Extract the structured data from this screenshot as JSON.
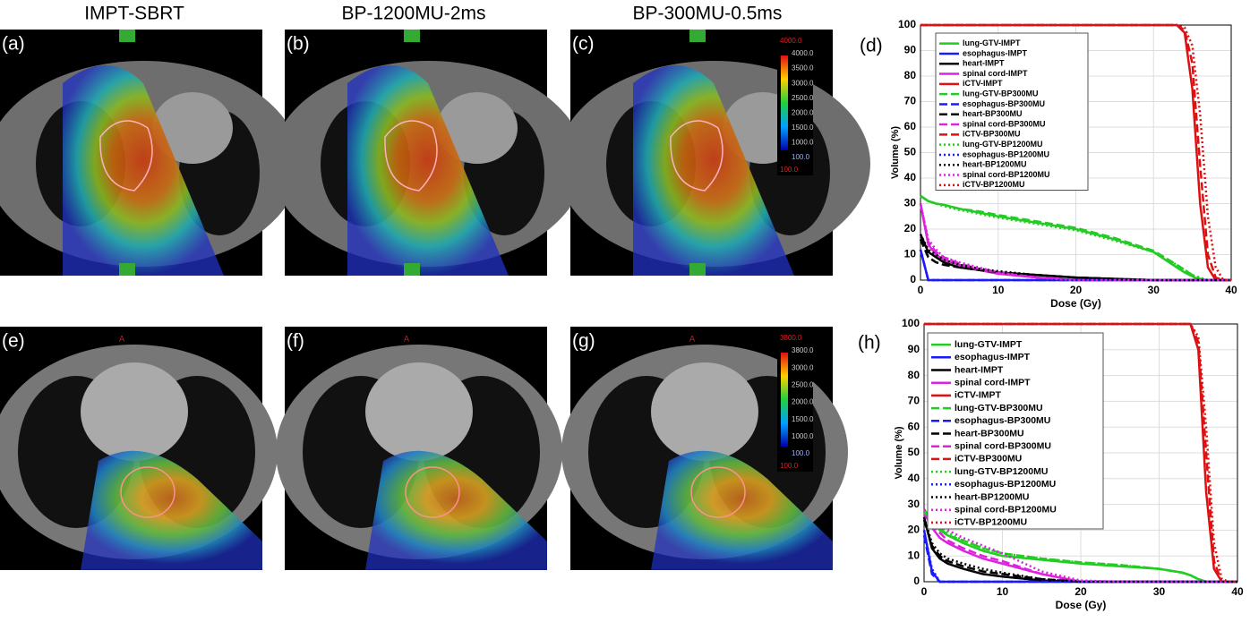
{
  "column_titles": [
    "IMPT-SBRT",
    "BP-1200MU-2ms",
    "BP-300MU-0.5ms"
  ],
  "image_panels": [
    {
      "label": "(a)"
    },
    {
      "label": "(b)"
    },
    {
      "label": "(c)"
    },
    {
      "label": "(e)",
      "marker": "A"
    },
    {
      "label": "(f)",
      "marker": "A"
    },
    {
      "label": "(g)",
      "marker": "A"
    }
  ],
  "colorbars": [
    {
      "labels": [
        "4000.0",
        "4000.0",
        "3500.0",
        "3000.0",
        "2500.0",
        "2000.0",
        "1500.0",
        "1000.0",
        "100.0",
        "100.0"
      ]
    },
    {
      "labels": [
        "3800.0",
        "3800.0",
        "3000.0",
        "2500.0",
        "2000.0",
        "1500.0",
        "1000.0",
        "100.0",
        "100.0"
      ]
    }
  ],
  "chart_data": [
    {
      "type": "line",
      "panel_label": "(d)",
      "x_label": "Dose (Gy)",
      "y_label": "Volume (%)",
      "x": [
        0,
        1,
        2,
        3,
        5,
        7.5,
        10,
        15,
        20,
        25,
        30,
        33,
        34,
        35,
        36,
        37,
        38,
        39,
        40
      ],
      "xlim": [
        0,
        40
      ],
      "xticks": [
        0,
        10,
        20,
        30,
        40
      ],
      "ylim": [
        0,
        100
      ],
      "yticks": [
        0,
        10,
        20,
        30,
        40,
        50,
        60,
        70,
        80,
        90,
        100
      ],
      "grid": true,
      "series": [
        {
          "name": "lung-GTV-IMPT",
          "color": "#22cc22",
          "dash": "solid",
          "values": [
            33,
            31,
            30,
            29.5,
            28,
            26.5,
            25,
            22.5,
            20,
            16,
            11,
            5,
            3,
            1.5,
            0,
            0,
            0,
            0,
            0
          ]
        },
        {
          "name": "esophagus-IMPT",
          "color": "#1a1aff",
          "dash": "solid",
          "values": [
            12,
            0,
            0,
            0,
            0,
            0,
            0,
            0,
            0,
            0,
            0,
            0,
            0,
            0,
            0,
            0,
            0,
            0,
            0
          ]
        },
        {
          "name": "heart-IMPT",
          "color": "#000000",
          "dash": "solid",
          "values": [
            18,
            11,
            9,
            7,
            5,
            4,
            3,
            2,
            1,
            0.5,
            0,
            0,
            0,
            0,
            0,
            0,
            0,
            0,
            0
          ]
        },
        {
          "name": "spinal cord-IMPT",
          "color": "#dd22dd",
          "dash": "solid",
          "values": [
            30,
            14,
            10,
            8,
            6,
            4,
            2.5,
            1,
            0,
            0,
            0,
            0,
            0,
            0,
            0,
            0,
            0,
            0,
            0
          ]
        },
        {
          "name": "iCTV-IMPT",
          "color": "#dd1111",
          "dash": "solid",
          "values": [
            100,
            100,
            100,
            100,
            100,
            100,
            100,
            100,
            100,
            100,
            100,
            100,
            97,
            75,
            30,
            5,
            0,
            0,
            0
          ]
        },
        {
          "name": "lung-GTV-BP300MU",
          "color": "#22cc22",
          "dash": "dashed",
          "values": [
            33,
            31,
            30,
            29.5,
            28,
            27,
            25.5,
            23,
            20.5,
            16.5,
            11.5,
            6,
            4,
            2,
            0.5,
            0,
            0,
            0,
            0
          ]
        },
        {
          "name": "esophagus-BP300MU",
          "color": "#1a1aff",
          "dash": "dashed",
          "values": [
            12,
            0,
            0,
            0,
            0,
            0,
            0,
            0,
            0,
            0,
            0,
            0,
            0,
            0,
            0,
            0,
            0,
            0,
            0
          ]
        },
        {
          "name": "heart-BP300MU",
          "color": "#000000",
          "dash": "dashed",
          "values": [
            16,
            9,
            7,
            6,
            5,
            4,
            3,
            2,
            1,
            0.5,
            0,
            0,
            0,
            0,
            0,
            0,
            0,
            0,
            0
          ]
        },
        {
          "name": "spinal cord-BP300MU",
          "color": "#dd22dd",
          "dash": "dashed",
          "values": [
            30,
            15,
            11,
            9,
            6.5,
            4.5,
            3,
            1,
            0,
            0,
            0,
            0,
            0,
            0,
            0,
            0,
            0,
            0,
            0
          ]
        },
        {
          "name": "iCTV-BP300MU",
          "color": "#dd1111",
          "dash": "dashed",
          "values": [
            100,
            100,
            100,
            100,
            100,
            100,
            100,
            100,
            100,
            100,
            100,
            100,
            98,
            85,
            45,
            10,
            1,
            0,
            0
          ]
        },
        {
          "name": "lung-GTV-BP1200MU",
          "color": "#22cc22",
          "dash": "dotted",
          "values": [
            33,
            31,
            30,
            29,
            27.5,
            26,
            24.5,
            22,
            19.5,
            15.5,
            11,
            6,
            4,
            2,
            1,
            0,
            0,
            0,
            0
          ]
        },
        {
          "name": "esophagus-BP1200MU",
          "color": "#1a1aff",
          "dash": "dotted",
          "values": [
            12,
            0,
            0,
            0,
            0,
            0,
            0,
            0,
            0,
            0,
            0,
            0,
            0,
            0,
            0,
            0,
            0,
            0,
            0
          ]
        },
        {
          "name": "heart-BP1200MU",
          "color": "#000000",
          "dash": "dotted",
          "values": [
            18,
            12,
            10,
            8,
            6,
            4.5,
            3.5,
            2,
            1,
            0.5,
            0,
            0,
            0,
            0,
            0,
            0,
            0,
            0,
            0
          ]
        },
        {
          "name": "spinal cord-BP1200MU",
          "color": "#dd22dd",
          "dash": "dotted",
          "values": [
            30,
            16,
            12,
            9,
            7,
            5,
            3,
            1,
            0,
            0,
            0,
            0,
            0,
            0,
            0,
            0,
            0,
            0,
            0
          ]
        },
        {
          "name": "iCTV-BP1200MU",
          "color": "#dd1111",
          "dash": "dotted",
          "values": [
            100,
            100,
            100,
            100,
            100,
            100,
            100,
            100,
            100,
            100,
            100,
            100,
            99,
            92,
            65,
            25,
            5,
            0,
            0
          ]
        }
      ]
    },
    {
      "type": "line",
      "panel_label": "(h)",
      "x_label": "Dose (Gy)",
      "y_label": "Volume (%)",
      "x": [
        0,
        1,
        2,
        3,
        5,
        7.5,
        10,
        15,
        20,
        25,
        30,
        33,
        34,
        35,
        36,
        37,
        38,
        39,
        40
      ],
      "xlim": [
        0,
        40
      ],
      "xticks": [
        0,
        10,
        20,
        30,
        40
      ],
      "ylim": [
        0,
        100
      ],
      "yticks": [
        0,
        10,
        20,
        30,
        40,
        50,
        60,
        70,
        80,
        90,
        100
      ],
      "grid": true,
      "series": [
        {
          "name": "lung-GTV-IMPT",
          "color": "#22cc22",
          "dash": "solid",
          "values": [
            28,
            24,
            20,
            18,
            15,
            12,
            10,
            8.5,
            7,
            6,
            5,
            3.5,
            2.5,
            1,
            0,
            0,
            0,
            0,
            0
          ]
        },
        {
          "name": "esophagus-IMPT",
          "color": "#1a1aff",
          "dash": "solid",
          "values": [
            20,
            4,
            0,
            0,
            0,
            0,
            0,
            0,
            0,
            0,
            0,
            0,
            0,
            0,
            0,
            0,
            0,
            0,
            0
          ]
        },
        {
          "name": "heart-IMPT",
          "color": "#000000",
          "dash": "solid",
          "values": [
            25,
            13,
            9,
            7,
            5,
            3,
            2,
            0.5,
            0,
            0,
            0,
            0,
            0,
            0,
            0,
            0,
            0,
            0,
            0
          ]
        },
        {
          "name": "spinal cord-IMPT",
          "color": "#dd22dd",
          "dash": "solid",
          "values": [
            27,
            21,
            17,
            15,
            12,
            9,
            7,
            3,
            0,
            0,
            0,
            0,
            0,
            0,
            0,
            0,
            0,
            0,
            0
          ]
        },
        {
          "name": "iCTV-IMPT",
          "color": "#dd1111",
          "dash": "solid",
          "values": [
            100,
            100,
            100,
            100,
            100,
            100,
            100,
            100,
            100,
            100,
            100,
            100,
            100,
            90,
            35,
            5,
            0,
            0,
            0
          ]
        },
        {
          "name": "lung-GTV-BP300MU",
          "color": "#22cc22",
          "dash": "dashed",
          "values": [
            27,
            24,
            21,
            18,
            16,
            13,
            11,
            9,
            7.5,
            6.5,
            5,
            3.5,
            2.5,
            1,
            0,
            0,
            0,
            0,
            0
          ]
        },
        {
          "name": "esophagus-BP300MU",
          "color": "#1a1aff",
          "dash": "dashed",
          "values": [
            18,
            3,
            0,
            0,
            0,
            0,
            0,
            0,
            0,
            0,
            0,
            0,
            0,
            0,
            0,
            0,
            0,
            0,
            0
          ]
        },
        {
          "name": "heart-BP300MU",
          "color": "#000000",
          "dash": "dashed",
          "values": [
            24,
            14,
            10,
            8,
            6,
            4,
            3,
            1,
            0,
            0,
            0,
            0,
            0,
            0,
            0,
            0,
            0,
            0,
            0
          ]
        },
        {
          "name": "spinal cord-BP300MU",
          "color": "#dd22dd",
          "dash": "dashed",
          "values": [
            26,
            22,
            19,
            16,
            13,
            10,
            8,
            3,
            0,
            0,
            0,
            0,
            0,
            0,
            0,
            0,
            0,
            0,
            0
          ]
        },
        {
          "name": "iCTV-BP300MU",
          "color": "#dd1111",
          "dash": "dashed",
          "values": [
            100,
            100,
            100,
            100,
            100,
            100,
            100,
            100,
            100,
            100,
            100,
            100,
            100,
            93,
            50,
            8,
            0,
            0,
            0
          ]
        },
        {
          "name": "lung-GTV-BP1200MU",
          "color": "#22cc22",
          "dash": "dotted",
          "values": [
            28,
            25,
            22,
            19,
            16,
            13,
            11,
            9,
            7.5,
            6.5,
            5,
            3.5,
            2.5,
            1,
            0,
            0,
            0,
            0,
            0
          ]
        },
        {
          "name": "esophagus-BP1200MU",
          "color": "#1a1aff",
          "dash": "dotted",
          "values": [
            20,
            5,
            0,
            0,
            0,
            0,
            0,
            0,
            0,
            0,
            0,
            0,
            0,
            0,
            0,
            0,
            0,
            0,
            0
          ]
        },
        {
          "name": "heart-BP1200MU",
          "color": "#000000",
          "dash": "dotted",
          "values": [
            25,
            15,
            11,
            9,
            7,
            5,
            3.5,
            1,
            0,
            0,
            0,
            0,
            0,
            0,
            0,
            0,
            0,
            0,
            0
          ]
        },
        {
          "name": "spinal cord-BP1200MU",
          "color": "#dd22dd",
          "dash": "dotted",
          "values": [
            28,
            26,
            23,
            20,
            17,
            14,
            11,
            4,
            0.5,
            0,
            0,
            0,
            0,
            0,
            0,
            0,
            0,
            0,
            0
          ]
        },
        {
          "name": "iCTV-BP1200MU",
          "color": "#dd1111",
          "dash": "dotted",
          "values": [
            100,
            100,
            100,
            100,
            100,
            100,
            100,
            100,
            100,
            100,
            100,
            100,
            100,
            95,
            60,
            15,
            1,
            0,
            0
          ]
        }
      ]
    }
  ]
}
